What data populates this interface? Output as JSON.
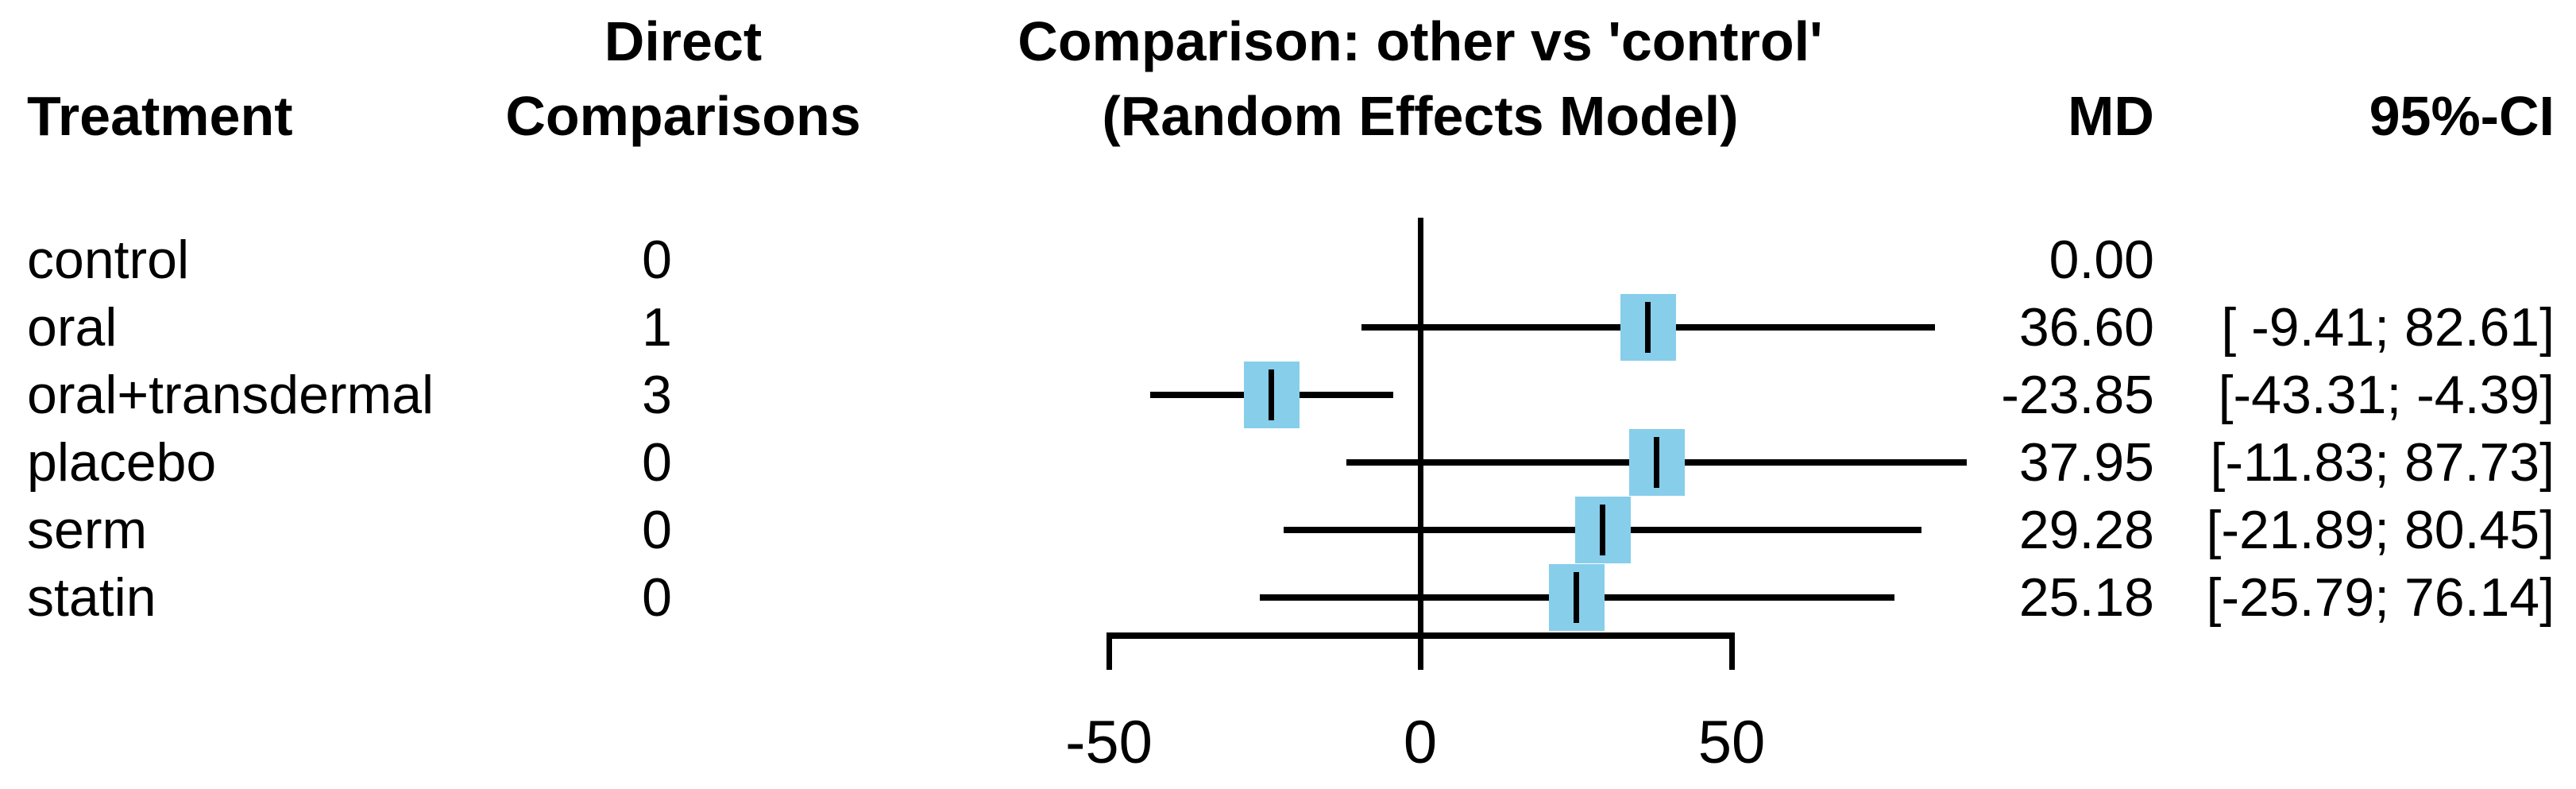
{
  "header": {
    "treatment": "Treatment",
    "direct_comparisons_line1": "Direct",
    "direct_comparisons_line2": "Comparisons",
    "plot_title_line1": "Comparison: other vs 'control'",
    "plot_title_line2": "(Random Effects Model)",
    "md": "MD",
    "ci": "95%-CI"
  },
  "chart_data": {
    "type": "forest",
    "effect_measure": "MD",
    "model": "Random Effects Model",
    "comparison_note": "Comparison: other vs 'control'",
    "reference_treatment": "control",
    "reference_value": 0,
    "axis_ticks": [
      -50,
      0,
      50
    ],
    "axis_tick_labels": [
      "-50",
      "0",
      "50"
    ],
    "axis_range": [
      -50,
      50
    ],
    "rows": [
      {
        "treatment": "control",
        "direct_comparisons": "0",
        "md": 0.0,
        "md_text": "0.00",
        "ci_lower": null,
        "ci_upper": null,
        "ci_text": ""
      },
      {
        "treatment": "oral",
        "direct_comparisons": "1",
        "md": 36.6,
        "md_text": "36.60",
        "ci_lower": -9.41,
        "ci_upper": 82.61,
        "ci_text": "[ -9.41; 82.61]"
      },
      {
        "treatment": "oral+transdermal",
        "direct_comparisons": "3",
        "md": -23.85,
        "md_text": "-23.85",
        "ci_lower": -43.31,
        "ci_upper": -4.39,
        "ci_text": "[-43.31; -4.39]"
      },
      {
        "treatment": "placebo",
        "direct_comparisons": "0",
        "md": 37.95,
        "md_text": "37.95",
        "ci_lower": -11.83,
        "ci_upper": 87.73,
        "ci_text": "[-11.83; 87.73]"
      },
      {
        "treatment": "serm",
        "direct_comparisons": "0",
        "md": 29.28,
        "md_text": "29.28",
        "ci_lower": -21.89,
        "ci_upper": 80.45,
        "ci_text": "[-21.89; 80.45]"
      },
      {
        "treatment": "statin",
        "direct_comparisons": "0",
        "md": 25.18,
        "md_text": "25.18",
        "ci_lower": -25.79,
        "ci_upper": 76.14,
        "ci_text": "[-25.79; 76.14]"
      }
    ],
    "colors": {
      "square": "#87CEEB",
      "line": "#000000",
      "text": "#000000",
      "background": "#FFFFFF"
    }
  }
}
